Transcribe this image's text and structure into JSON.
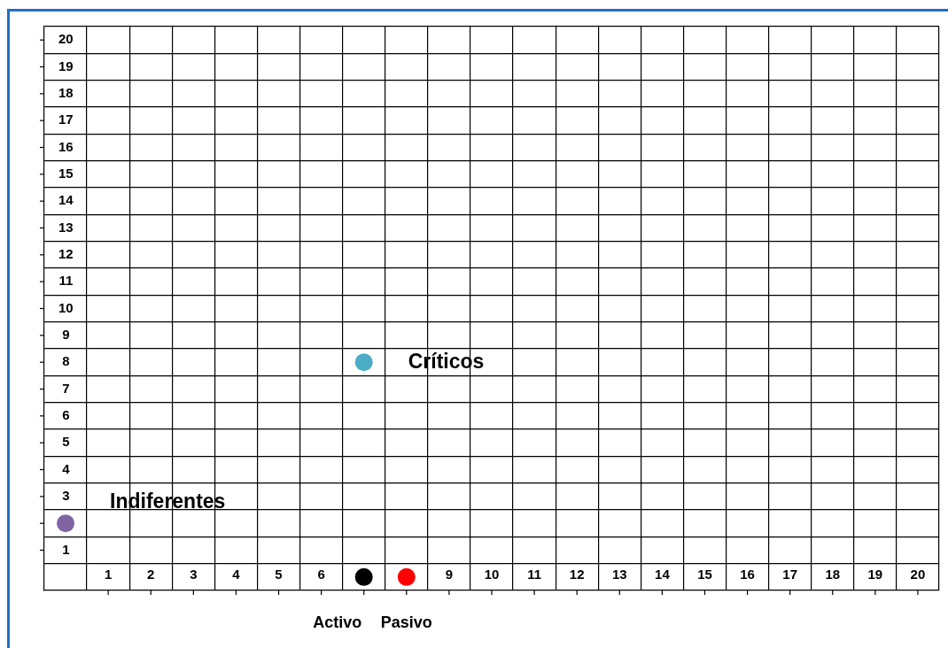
{
  "chart_data": {
    "type": "scatter",
    "xlim": [
      -0.5,
      20.5
    ],
    "ylim": [
      -0.5,
      20.5
    ],
    "xticks": [
      1,
      2,
      3,
      4,
      5,
      6,
      {
        "value": 7,
        "label": null
      },
      {
        "value": 8,
        "label": null
      },
      9,
      10,
      11,
      12,
      13,
      14,
      15,
      16,
      17,
      18,
      19,
      20
    ],
    "yticks": [
      1,
      {
        "value": 2,
        "label": null
      },
      3,
      4,
      5,
      6,
      7,
      8,
      9,
      10,
      11,
      12,
      13,
      14,
      15,
      16,
      17,
      18,
      19,
      20
    ],
    "grid": true,
    "legend": false,
    "marker": "circle",
    "series": [
      {
        "name": "Críticos",
        "color": "#4bacc6",
        "x": [
          7
        ],
        "values": [
          8
        ]
      },
      {
        "name": "Indiferentes",
        "color": "#8064a2",
        "x": [
          0
        ],
        "values": [
          2
        ]
      },
      {
        "name": "Activo",
        "color": "#000000",
        "x": [
          7
        ],
        "values": [
          0
        ]
      },
      {
        "name": "Pasivo",
        "color": "#ff0000",
        "x": [
          8
        ],
        "values": [
          0
        ]
      }
    ]
  }
}
